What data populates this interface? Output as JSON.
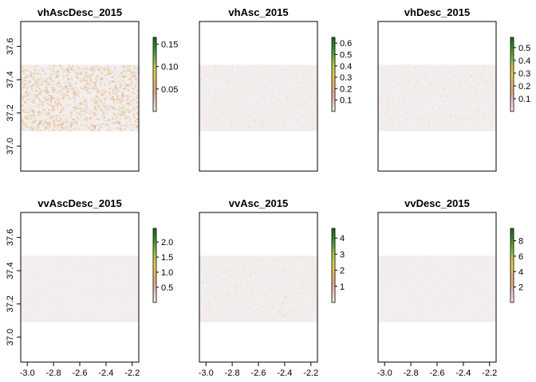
{
  "chart_data": [
    {
      "type": "heatmap",
      "title": "vhAscDesc_2015",
      "xlim": [
        -3.05,
        -2.15
      ],
      "ylim": [
        36.85,
        37.75
      ],
      "xticks": [
        "-3.0",
        "-2.8",
        "-2.6",
        "-2.4",
        "-2.2"
      ],
      "yticks": [
        "37.0",
        "37.2",
        "37.4",
        "37.6"
      ],
      "data_extent": {
        "x": [
          -3.05,
          -2.15
        ],
        "y": [
          37.09,
          37.49
        ]
      },
      "colorbar": {
        "range": [
          0.0,
          0.165
        ],
        "ticks": [
          0.05,
          0.1,
          0.15
        ],
        "tick_labels": [
          "0.05",
          "0.10",
          "0.15"
        ]
      },
      "texture": "dense"
    },
    {
      "type": "heatmap",
      "title": "vhAsc_2015",
      "xlim": [
        -3.05,
        -2.15
      ],
      "ylim": [
        36.85,
        37.75
      ],
      "xticks": [
        "-3.0",
        "-2.8",
        "-2.6",
        "-2.4",
        "-2.2"
      ],
      "yticks": [
        "37.0",
        "37.2",
        "37.4",
        "37.6"
      ],
      "data_extent": {
        "x": [
          -3.05,
          -2.15
        ],
        "y": [
          37.09,
          37.49
        ]
      },
      "colorbar": {
        "range": [
          0.0,
          0.65
        ],
        "ticks": [
          0.1,
          0.2,
          0.3,
          0.4,
          0.5,
          0.6
        ],
        "tick_labels": [
          "0.1",
          "0.2",
          "0.3",
          "0.4",
          "0.5",
          "0.6"
        ]
      },
      "texture": "sparse"
    },
    {
      "type": "heatmap",
      "title": "vhDesc_2015",
      "xlim": [
        -3.05,
        -2.15
      ],
      "ylim": [
        36.85,
        37.75
      ],
      "xticks": [
        "-3.0",
        "-2.8",
        "-2.6",
        "-2.4",
        "-2.2"
      ],
      "yticks": [
        "37.0",
        "37.2",
        "37.4",
        "37.6"
      ],
      "data_extent": {
        "x": [
          -3.05,
          -2.15
        ],
        "y": [
          37.09,
          37.49
        ]
      },
      "colorbar": {
        "range": [
          0.0,
          0.58
        ],
        "ticks": [
          0.1,
          0.2,
          0.3,
          0.4,
          0.5
        ],
        "tick_labels": [
          "0.1",
          "0.2",
          "0.3",
          "0.4",
          "0.5"
        ]
      },
      "texture": "sparse"
    },
    {
      "type": "heatmap",
      "title": "vvAscDesc_2015",
      "xlim": [
        -3.05,
        -2.15
      ],
      "ylim": [
        36.85,
        37.75
      ],
      "xticks": [
        "-3.0",
        "-2.8",
        "-2.6",
        "-2.4",
        "-2.2"
      ],
      "yticks": [
        "37.0",
        "37.2",
        "37.4",
        "37.6"
      ],
      "data_extent": {
        "x": [
          -3.05,
          -2.15
        ],
        "y": [
          37.09,
          37.49
        ]
      },
      "colorbar": {
        "range": [
          0.0,
          2.45
        ],
        "ticks": [
          0.5,
          1.0,
          1.5,
          2.0
        ],
        "tick_labels": [
          "0.5",
          "1.0",
          "1.5",
          "2.0"
        ]
      },
      "texture": "faint"
    },
    {
      "type": "heatmap",
      "title": "vvAsc_2015",
      "xlim": [
        -3.05,
        -2.15
      ],
      "ylim": [
        36.85,
        37.75
      ],
      "xticks": [
        "-3.0",
        "-2.8",
        "-2.6",
        "-2.4",
        "-2.2"
      ],
      "yticks": [
        "37.0",
        "37.2",
        "37.4",
        "37.6"
      ],
      "data_extent": {
        "x": [
          -3.05,
          -2.15
        ],
        "y": [
          37.09,
          37.49
        ]
      },
      "colorbar": {
        "range": [
          0.0,
          4.6
        ],
        "ticks": [
          1,
          2,
          3,
          4
        ],
        "tick_labels": [
          "1",
          "2",
          "3",
          "4"
        ]
      },
      "texture": "sparse"
    },
    {
      "type": "heatmap",
      "title": "vvDesc_2015",
      "xlim": [
        -3.05,
        -2.15
      ],
      "ylim": [
        36.85,
        37.75
      ],
      "xticks": [
        "-3.0",
        "-2.8",
        "-2.6",
        "-2.4",
        "-2.2"
      ],
      "yticks": [
        "37.0",
        "37.2",
        "37.4",
        "37.6"
      ],
      "data_extent": {
        "x": [
          -3.05,
          -2.15
        ],
        "y": [
          37.09,
          37.49
        ]
      },
      "colorbar": {
        "range": [
          0.0,
          9.6
        ],
        "ticks": [
          2,
          4,
          6,
          8
        ],
        "tick_labels": [
          "2",
          "4",
          "6",
          "8"
        ]
      },
      "texture": "faint"
    }
  ],
  "colors": {
    "raster_background": "#f2eeed",
    "colorbar_gradient": [
      "#f3efee",
      "#f0c9c1",
      "#e8a98e",
      "#e7b86a",
      "#e9d14a",
      "#b9cc45",
      "#6bab3c",
      "#2f8a2e",
      "#146e1e"
    ]
  }
}
